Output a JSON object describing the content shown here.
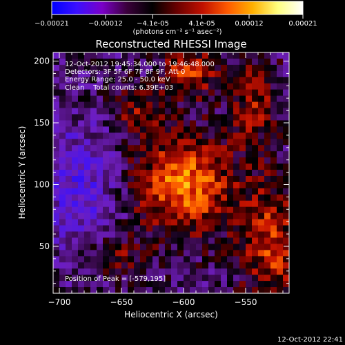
{
  "colorbar": {
    "tick_labels": [
      "-0.00021",
      "-0.00012",
      "-4.1e-05",
      "4.1e-05",
      "0.00012",
      "0.00021"
    ],
    "unit_label": "(photons cm⁻² s⁻¹ asec⁻²)",
    "stops": [
      "#0000ff",
      "#3b10ff",
      "#7a00c8",
      "#3a003a",
      "#000000",
      "#6a0000",
      "#c01000",
      "#ff5a00",
      "#ffb000",
      "#ffff80",
      "#ffffff"
    ]
  },
  "chart_data": {
    "type": "heatmap",
    "title": "Reconstructed RHESSI Image",
    "xlabel": "Heliocentric X (arcsec)",
    "ylabel": "Heliocentric Y (arcsec)",
    "xlim": [
      -705,
      -515
    ],
    "ylim": [
      12,
      207
    ],
    "x_ticks": [
      -700,
      -650,
      -600,
      -550
    ],
    "y_ticks": [
      50,
      100,
      150,
      200
    ],
    "x_tick_labels": [
      "−700",
      "−650",
      "−600",
      "−550"
    ],
    "y_tick_labels": [
      "50",
      "100",
      "150",
      "200"
    ],
    "value_range": [
      -0.00021,
      0.00021
    ],
    "peak_position": [
      -579,
      195
    ],
    "info_lines": [
      "12-Oct-2012 19:45:34.000 to 19:46:48.000",
      "Detectors: 3F 5F 6F 7F 8F 9F, Att 0",
      "Energy Range: 25.0 - 50.0 keV",
      "Clean    Total counts: 6.39E+03"
    ],
    "peak_label": "Position of Peak = [-579,195]"
  },
  "footer": {
    "timestamp": "12-Oct-2012 22:41"
  }
}
